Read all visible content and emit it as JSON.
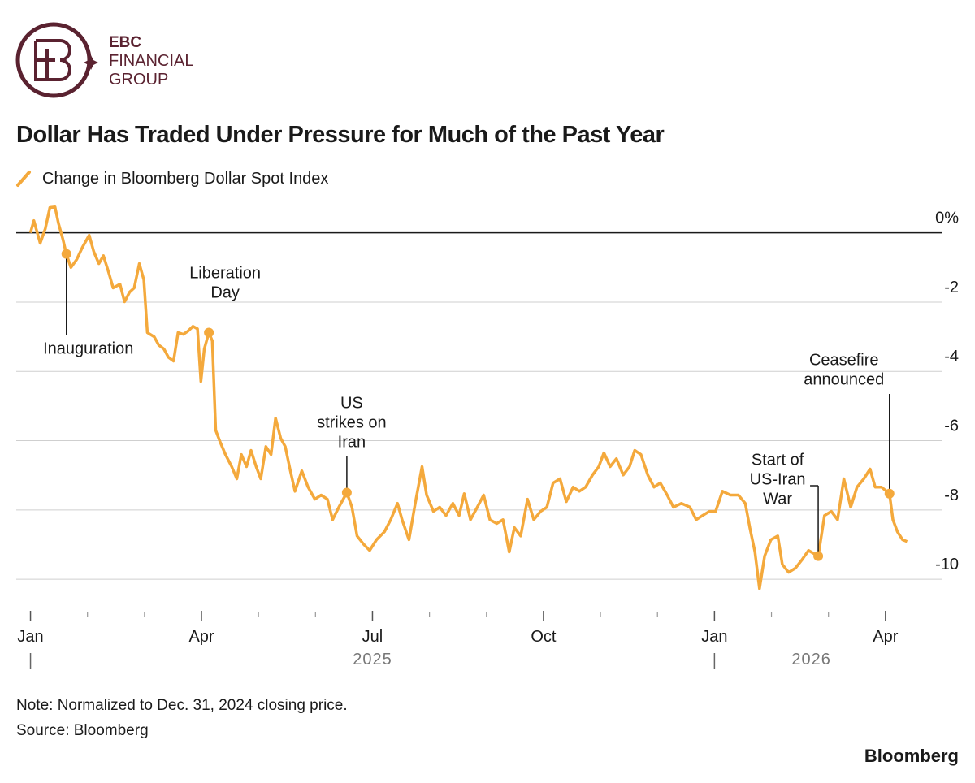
{
  "logo": {
    "lines": [
      "EBC",
      "FINANCIAL",
      "GROUP"
    ]
  },
  "chart_data": {
    "type": "line",
    "title": "Dollar Has Traded Under Pressure for Much of the Past Year",
    "xlim": [
      -0.25,
      16
    ],
    "ylim": [
      -10.7,
      1.0
    ],
    "xticks": [
      {
        "value": 0,
        "label": "Jan"
      },
      {
        "value": 3,
        "label": "Apr"
      },
      {
        "value": 6,
        "label": "Jul"
      },
      {
        "value": 9,
        "label": "Oct"
      },
      {
        "value": 12,
        "label": "Jan"
      },
      {
        "value": 15,
        "label": "Apr"
      }
    ],
    "xminor_ticks": [
      1,
      2,
      4,
      5,
      7,
      8,
      10,
      11,
      13,
      14
    ],
    "year_labels": [
      {
        "value": 6,
        "label": "2025"
      },
      {
        "value": 13.7,
        "label": "2026"
      }
    ],
    "year_starts": [
      0,
      12
    ],
    "yticks": [
      {
        "value": 0,
        "label": "0%"
      },
      -2,
      -4,
      -6,
      -8,
      -10
    ],
    "grid": true,
    "series": [
      {
        "name": "Change in Bloomberg Dollar Spot Index",
        "color": "#f4a93c",
        "x": [
          0,
          0.06,
          0.17,
          0.26,
          0.34,
          0.43,
          0.49,
          0.57,
          0.63,
          0.71,
          0.81,
          0.91,
          1.03,
          1.11,
          1.2,
          1.28,
          1.37,
          1.45,
          1.57,
          1.65,
          1.74,
          1.82,
          1.91,
          1.99,
          2.05,
          2.17,
          2.25,
          2.34,
          2.42,
          2.51,
          2.59,
          2.68,
          2.76,
          2.85,
          2.93,
          2.99,
          3.05,
          3.13,
          3.19,
          3.25,
          3.33,
          3.42,
          3.53,
          3.62,
          3.7,
          3.79,
          3.87,
          3.96,
          4.04,
          4.13,
          4.22,
          4.3,
          4.39,
          4.47,
          4.56,
          4.64,
          4.76,
          4.87,
          4.99,
          5.1,
          5.21,
          5.3,
          5.41,
          5.55,
          5.64,
          5.73,
          5.84,
          5.95,
          6.07,
          6.21,
          6.32,
          6.44,
          6.52,
          6.64,
          6.75,
          6.87,
          6.95,
          7.07,
          7.18,
          7.29,
          7.41,
          7.52,
          7.61,
          7.72,
          7.84,
          7.95,
          8.06,
          8.18,
          8.29,
          8.4,
          8.49,
          8.6,
          8.72,
          8.83,
          8.95,
          9.06,
          9.17,
          9.29,
          9.4,
          9.52,
          9.63,
          9.74,
          9.86,
          9.97,
          10.06,
          10.17,
          10.28,
          10.4,
          10.51,
          10.6,
          10.71,
          10.83,
          10.94,
          11.05,
          11.17,
          11.28,
          11.42,
          11.57,
          11.68,
          11.79,
          11.91,
          12.02,
          12.14,
          12.28,
          12.42,
          12.54,
          12.62,
          12.71,
          12.79,
          12.88,
          12.99,
          13.11,
          13.19,
          13.3,
          13.42,
          13.53,
          13.65,
          13.82,
          13.93,
          14.05,
          14.16,
          14.27,
          14.39,
          14.5,
          14.62,
          14.73,
          14.82,
          14.93,
          15.07,
          15.13,
          15.21,
          15.3,
          15.38
        ],
        "values": [
          0,
          0.35,
          -0.3,
          0.12,
          0.73,
          0.75,
          0.28,
          -0.19,
          -0.61,
          -1.0,
          -0.77,
          -0.42,
          -0.07,
          -0.54,
          -0.89,
          -0.66,
          -1.13,
          -1.59,
          -1.48,
          -1.99,
          -1.71,
          -1.59,
          -0.89,
          -1.36,
          -2.88,
          -3.0,
          -3.24,
          -3.35,
          -3.59,
          -3.7,
          -2.88,
          -2.93,
          -2.84,
          -2.7,
          -2.77,
          -4.29,
          -3.35,
          -2.88,
          -3.12,
          -5.7,
          -6.05,
          -6.4,
          -6.75,
          -7.1,
          -6.4,
          -6.75,
          -6.28,
          -6.75,
          -7.1,
          -6.17,
          -6.4,
          -5.35,
          -5.93,
          -6.17,
          -6.87,
          -7.46,
          -6.87,
          -7.34,
          -7.69,
          -7.57,
          -7.69,
          -8.28,
          -7.92,
          -7.5,
          -7.92,
          -8.75,
          -8.98,
          -9.17,
          -8.86,
          -8.63,
          -8.28,
          -7.81,
          -8.28,
          -8.86,
          -7.81,
          -6.75,
          -7.57,
          -8.04,
          -7.92,
          -8.16,
          -7.81,
          -8.16,
          -7.53,
          -8.28,
          -7.92,
          -7.57,
          -8.28,
          -8.39,
          -8.28,
          -9.21,
          -8.51,
          -8.75,
          -7.69,
          -8.28,
          -8.04,
          -7.92,
          -7.22,
          -7.1,
          -7.76,
          -7.34,
          -7.46,
          -7.34,
          -6.99,
          -6.75,
          -6.35,
          -6.75,
          -6.52,
          -6.99,
          -6.75,
          -6.28,
          -6.4,
          -6.99,
          -7.34,
          -7.22,
          -7.57,
          -7.92,
          -7.81,
          -7.92,
          -8.28,
          -8.16,
          -8.04,
          -8.04,
          -7.46,
          -7.57,
          -7.57,
          -7.81,
          -8.51,
          -9.21,
          -10.27,
          -9.33,
          -8.86,
          -8.75,
          -9.57,
          -9.8,
          -9.68,
          -9.45,
          -9.17,
          -9.33,
          -8.16,
          -8.04,
          -8.28,
          -7.1,
          -7.92,
          -7.34,
          -7.1,
          -6.82,
          -7.34,
          -7.34,
          -7.53,
          -8.28,
          -8.63,
          -8.86,
          -8.91
        ]
      }
    ],
    "annotations": [
      {
        "label": [
          "Inauguration"
        ],
        "x": 0.63,
        "y": -0.61
      },
      {
        "label": [
          "Liberation",
          "Day"
        ],
        "x": 3.13,
        "y": -2.88
      },
      {
        "label": [
          "US",
          "strikes on",
          "Iran"
        ],
        "x": 5.55,
        "y": -7.5
      },
      {
        "label": [
          "Start of",
          "US-Iran",
          "War"
        ],
        "x": 13.82,
        "y": -9.33
      },
      {
        "label": [
          "Ceasefire",
          "announced"
        ],
        "x": 15.07,
        "y": -7.53
      }
    ],
    "note": "Note: Normalized to Dec. 31, 2024 closing price.",
    "source": "Source: Bloomberg",
    "brand": "Bloomberg"
  }
}
